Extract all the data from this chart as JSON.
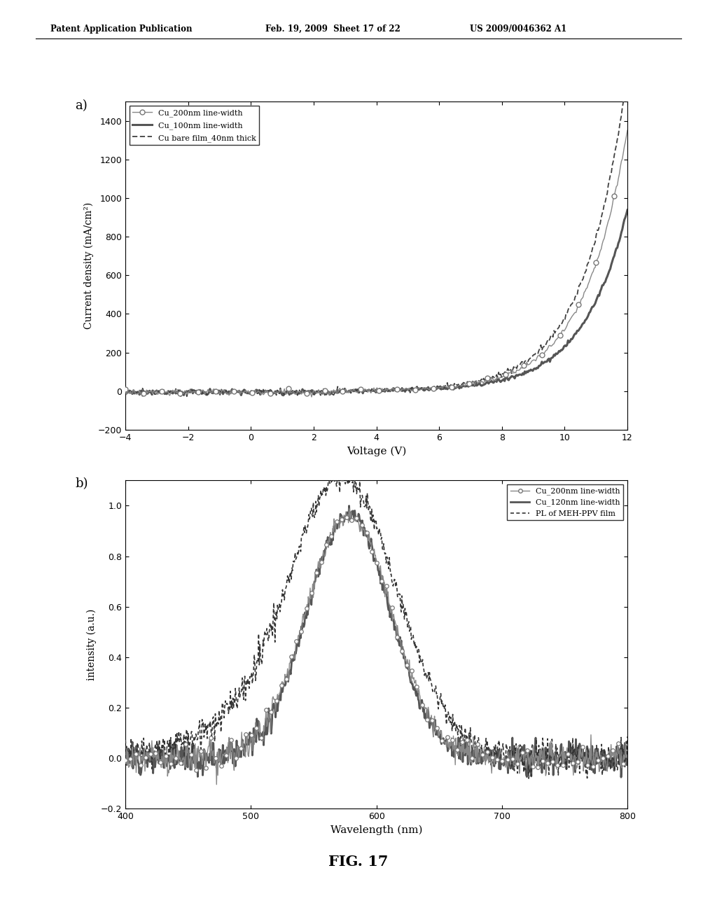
{
  "header_left": "Patent Application Publication",
  "header_mid": "Feb. 19, 2009  Sheet 17 of 22",
  "header_right": "US 2009/0046362 A1",
  "fig_label": "FIG. 17",
  "panel_a_label": "a)",
  "panel_b_label": "b)",
  "panel_a": {
    "xlabel": "Voltage (V)",
    "ylabel": "Current density (mA/cm²)",
    "xlim": [
      -4,
      12
    ],
    "ylim": [
      -200,
      1500
    ],
    "xticks": [
      -4,
      -2,
      0,
      2,
      4,
      6,
      8,
      10,
      12
    ],
    "yticks": [
      -200,
      0,
      200,
      400,
      600,
      800,
      1000,
      1200,
      1400
    ]
  },
  "panel_b": {
    "xlabel": "Wavelength (nm)",
    "ylabel": "intensity (a.u.)",
    "xlim": [
      400,
      800
    ],
    "ylim": [
      -0.2,
      1.1
    ],
    "xticks": [
      400,
      500,
      600,
      700,
      800
    ],
    "yticks": [
      -0.2,
      0.0,
      0.2,
      0.4,
      0.6,
      0.8,
      1.0
    ]
  },
  "background_color": "#ffffff",
  "text_color": "#000000"
}
